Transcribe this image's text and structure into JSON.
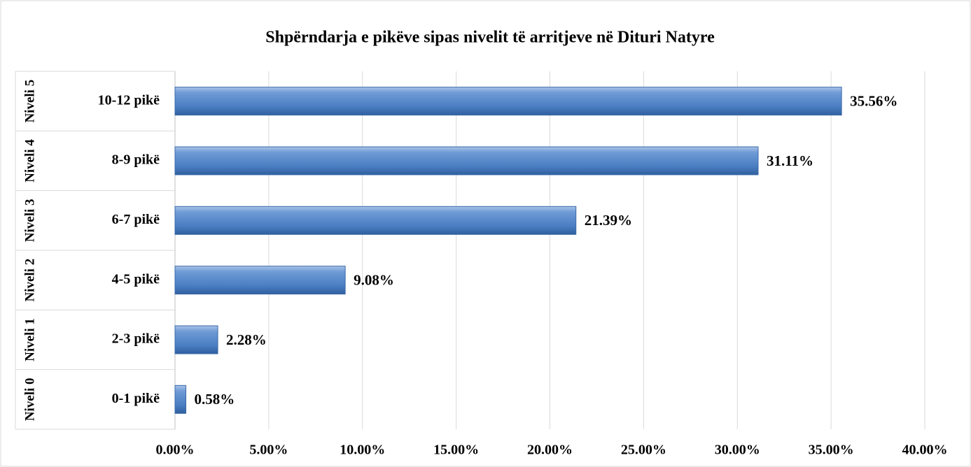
{
  "chart_data": {
    "type": "bar",
    "orientation": "horizontal",
    "title": "Shpërndarja e pikëve sipas nivelit të arritjeve në Dituri Natyre",
    "groups": [
      "Niveli 5",
      "Niveli 4",
      "Niveli 3",
      "Niveli 2",
      "Niveli 1",
      "Niveli 0"
    ],
    "categories": [
      "10-12 pikë",
      "8-9 pikë",
      "6-7 pikë",
      "4-5 pikë",
      "2-3 pikë",
      "0-1 pikë"
    ],
    "values": [
      35.56,
      31.11,
      21.39,
      9.08,
      2.28,
      0.58
    ],
    "value_labels": [
      "35.56%",
      "31.11%",
      "21.39%",
      "9.08%",
      "2.28%",
      "0.58%"
    ],
    "color": "#4f81bd",
    "xlim": [
      0,
      40
    ],
    "xticks": [
      {
        "value": 0,
        "label": "0.00%"
      },
      {
        "value": 5,
        "label": "5.00%"
      },
      {
        "value": 10,
        "label": "10.00%"
      },
      {
        "value": 15,
        "label": "15.00%"
      },
      {
        "value": 20,
        "label": "20.00%"
      },
      {
        "value": 25,
        "label": "25.00%"
      },
      {
        "value": 30,
        "label": "30.00%"
      },
      {
        "value": 35,
        "label": "35.00%"
      },
      {
        "value": 40,
        "label": "40.00%"
      }
    ],
    "grid": true
  }
}
